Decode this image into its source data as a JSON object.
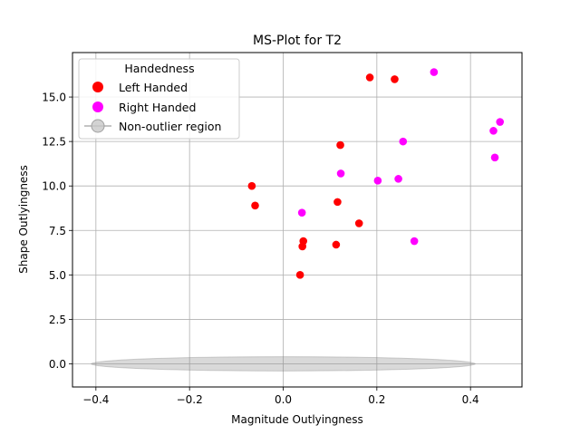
{
  "chart_data": {
    "type": "scatter",
    "title": "MS-Plot for T2",
    "xlabel": "Magnitude Outlyingness",
    "ylabel": "Shape Outlyingness",
    "xlim": [
      -0.45,
      0.51
    ],
    "ylim": [
      -1.3,
      17.5
    ],
    "xticks": [
      -0.4,
      -0.2,
      0.0,
      0.2,
      0.4
    ],
    "xtick_labels": [
      "−0.4",
      "−0.2",
      "0.0",
      "0.2",
      "0.4"
    ],
    "yticks": [
      0.0,
      2.5,
      5.0,
      7.5,
      10.0,
      12.5,
      15.0
    ],
    "ytick_labels": [
      "0.0",
      "2.5",
      "5.0",
      "7.5",
      "10.0",
      "12.5",
      "15.0"
    ],
    "grid": true,
    "legend": {
      "title": "Handedness",
      "position": "top-left",
      "entries": [
        "Left Handed",
        "Right Handed",
        "Non-outlier region"
      ]
    },
    "series": [
      {
        "name": "Left Handed",
        "color": "#ff0000",
        "points": [
          [
            0.185,
            16.1
          ],
          [
            0.238,
            16.0
          ],
          [
            0.122,
            12.3
          ],
          [
            -0.067,
            10.0
          ],
          [
            -0.06,
            8.9
          ],
          [
            0.116,
            9.1
          ],
          [
            0.162,
            7.9
          ],
          [
            0.043,
            6.9
          ],
          [
            0.041,
            6.6
          ],
          [
            0.113,
            6.7
          ],
          [
            0.036,
            5.0
          ]
        ]
      },
      {
        "name": "Right Handed",
        "color": "#ff00ff",
        "points": [
          [
            0.322,
            16.4
          ],
          [
            0.463,
            13.6
          ],
          [
            0.449,
            13.1
          ],
          [
            0.256,
            12.5
          ],
          [
            0.452,
            11.6
          ],
          [
            0.123,
            10.7
          ],
          [
            0.246,
            10.4
          ],
          [
            0.202,
            10.3
          ],
          [
            0.04,
            8.5
          ],
          [
            0.28,
            6.9
          ]
        ]
      }
    ],
    "non_outlier_region": {
      "name": "Non-outlier region",
      "center": [
        0.0,
        0.0
      ],
      "x_half_width": 0.41,
      "y_half_height": 0.4,
      "color": "#808080"
    }
  }
}
